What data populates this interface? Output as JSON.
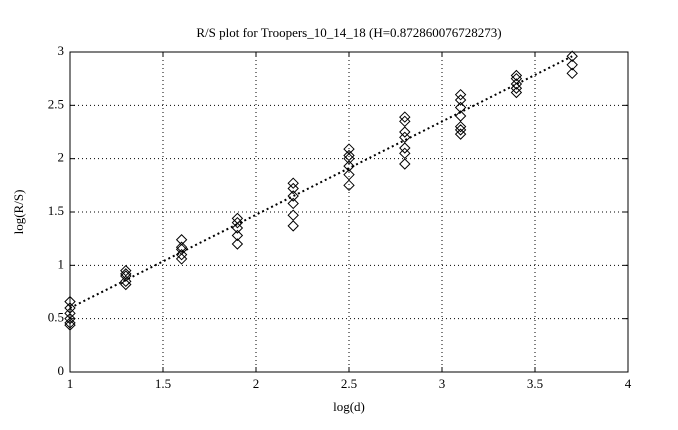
{
  "chart_data": {
    "type": "scatter",
    "title": "R/S plot for Troopers_10_14_18 (H=0.872860076728273)",
    "x_label": "log(d)",
    "y_label": "log(R/S)",
    "x": [
      1,
      1,
      1,
      1,
      1,
      1,
      1.3,
      1.3,
      1.3,
      1.3,
      1.3,
      1.6,
      1.6,
      1.6,
      1.6,
      1.6,
      1.9,
      1.9,
      1.9,
      1.9,
      1.9,
      2.2,
      2.2,
      2.2,
      2.2,
      2.2,
      2.2,
      2.5,
      2.5,
      2.5,
      2.5,
      2.5,
      2.5,
      2.8,
      2.8,
      2.8,
      2.8,
      2.8,
      2.8,
      2.8,
      3.1,
      3.1,
      3.1,
      3.1,
      3.1,
      3.1,
      3.1,
      3.4,
      3.4,
      3.4,
      3.4,
      3.4,
      3.7,
      3.7,
      3.7
    ],
    "values": [
      0.66,
      0.6,
      0.55,
      0.5,
      0.46,
      0.44,
      0.95,
      0.92,
      0.9,
      0.85,
      0.82,
      1.24,
      1.17,
      1.15,
      1.1,
      1.06,
      1.44,
      1.4,
      1.35,
      1.28,
      1.2,
      1.77,
      1.72,
      1.65,
      1.58,
      1.47,
      1.37,
      2.09,
      2.03,
      2.0,
      1.93,
      1.85,
      1.75,
      2.39,
      2.35,
      2.25,
      2.2,
      2.1,
      2.05,
      1.95,
      2.6,
      2.55,
      2.48,
      2.4,
      2.3,
      2.27,
      2.23,
      2.78,
      2.75,
      2.7,
      2.66,
      2.62,
      2.96,
      2.88,
      2.8
    ],
    "color": "#000000",
    "fit": {
      "x": [
        1,
        3.7
      ],
      "values": [
        0.6,
        2.96
      ]
    },
    "xlim": [
      1,
      4
    ],
    "xticks": [
      1,
      1.5,
      2,
      2.5,
      3,
      3.5,
      4
    ],
    "ylim": [
      0,
      3
    ],
    "yticks": [
      0,
      0.5,
      1,
      1.5,
      2,
      2.5,
      3
    ],
    "grid": true
  }
}
